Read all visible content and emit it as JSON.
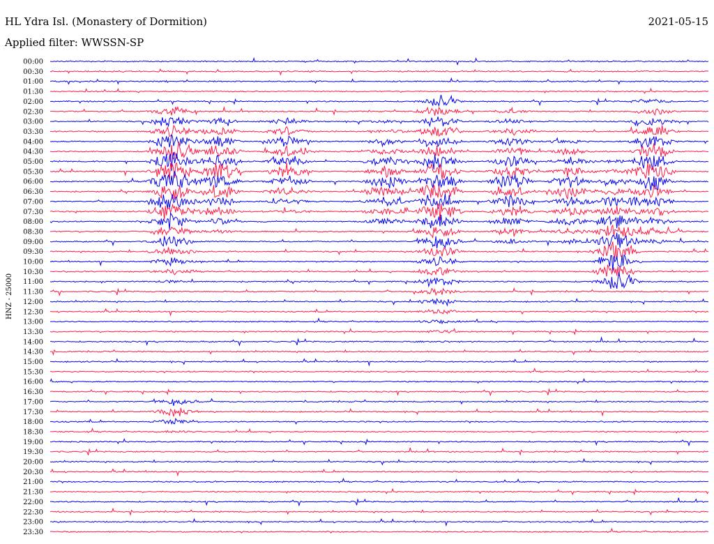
{
  "header": {
    "station": "HL Ydra Isl. (Monastery of Dormition)",
    "date": "2021-05-15",
    "filter_label": "Applied filter: WWSSN-SP"
  },
  "chart_data": {
    "type": "line",
    "title": "HL Ydra Isl. (Monastery of Dormition)",
    "ylabel": "HNZ - 25000",
    "xlabel": "",
    "grid": false,
    "row_labels": [
      "00:00",
      "00:30",
      "01:00",
      "01:30",
      "02:00",
      "02:30",
      "03:00",
      "03:30",
      "04:00",
      "04:30",
      "05:00",
      "05:30",
      "06:00",
      "06:30",
      "07:00",
      "07:30",
      "08:00",
      "08:30",
      "09:00",
      "09:30",
      "10:00",
      "10:30",
      "11:00",
      "11:30",
      "12:00",
      "12:30",
      "13:00",
      "13:30",
      "14:00",
      "14:30",
      "15:00",
      "15:30",
      "16:00",
      "16:30",
      "17:00",
      "17:30",
      "18:00",
      "18:30",
      "19:00",
      "19:30",
      "20:00",
      "20:30",
      "21:00",
      "21:30",
      "22:00",
      "22:30",
      "23:00",
      "23:30"
    ],
    "series_colors": [
      "#0000ee",
      "#ff1744"
    ],
    "bursts": [
      {
        "t": 0.185,
        "rows": [
          5,
          22
        ],
        "peak_row": 12,
        "amp": 1.0
      },
      {
        "t": 0.255,
        "rows": [
          6,
          17
        ],
        "peak_row": 11,
        "amp": 0.7
      },
      {
        "t": 0.36,
        "rows": [
          6,
          15
        ],
        "peak_row": 10,
        "amp": 0.6
      },
      {
        "t": 0.51,
        "rows": [
          6,
          16
        ],
        "peak_row": 12,
        "amp": 0.55
      },
      {
        "t": 0.59,
        "rows": [
          4,
          28
        ],
        "peak_row": 13,
        "amp": 0.8
      },
      {
        "t": 0.7,
        "rows": [
          5,
          18
        ],
        "peak_row": 12,
        "amp": 0.6
      },
      {
        "t": 0.79,
        "rows": [
          8,
          18
        ],
        "peak_row": 13,
        "amp": 0.55
      },
      {
        "t": 0.86,
        "rows": [
          7,
          22
        ],
        "peak_row": 19,
        "amp": 0.85
      },
      {
        "t": 0.915,
        "rows": [
          4,
          18
        ],
        "peak_row": 11,
        "amp": 0.75
      },
      {
        "t": 0.19,
        "rows": [
          34,
          37
        ],
        "peak_row": 35,
        "amp": 0.35
      }
    ]
  }
}
